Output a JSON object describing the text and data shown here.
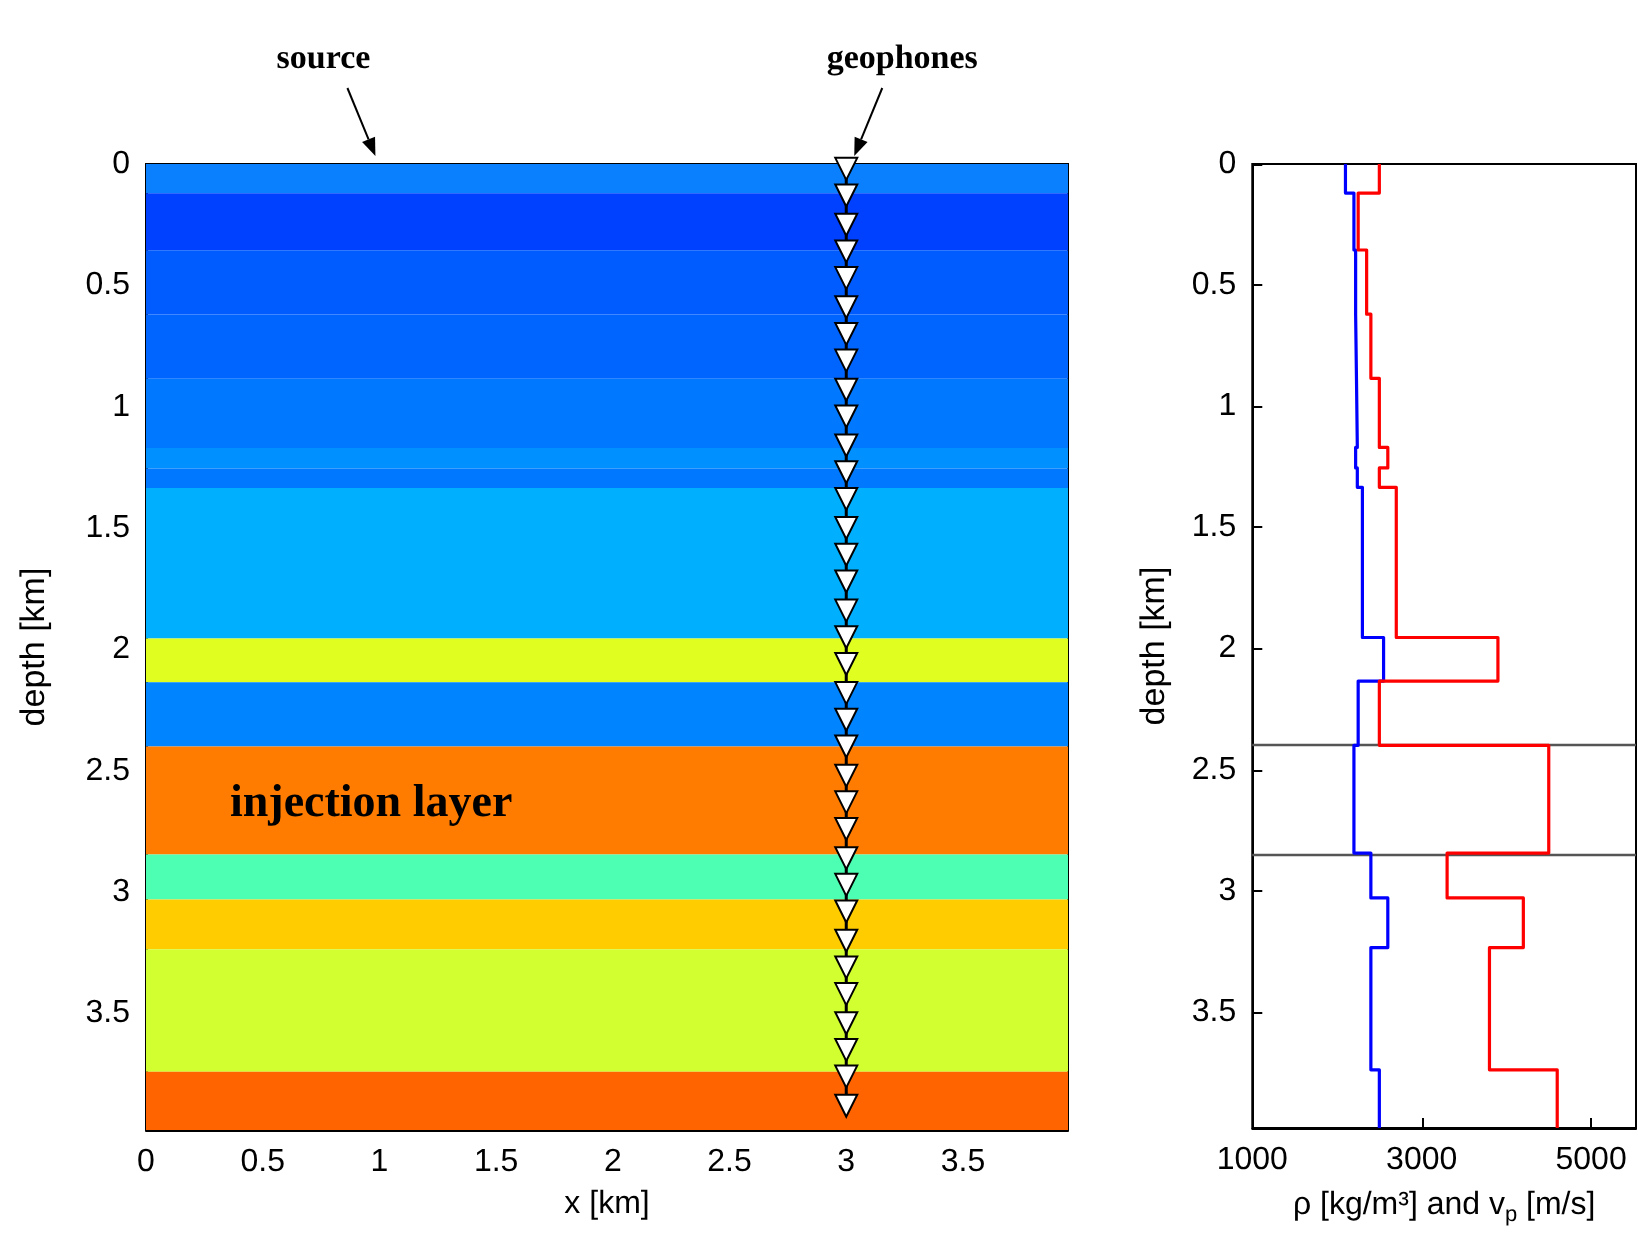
{
  "chart_data": [
    {
      "type": "line",
      "xlabel": "x [km]",
      "ylabel": "depth [km]",
      "xlim": [
        0,
        3.95
      ],
      "xticks": [
        0,
        0.5,
        1,
        1.5,
        2,
        2.5,
        3,
        3.5
      ],
      "ylim": [
        3.98,
        0
      ],
      "yticks": [
        0,
        0.5,
        1,
        1.5,
        2,
        2.5,
        3,
        3.5
      ],
      "grid": false,
      "marker": "triangle",
      "series": [
        {
          "color": "#000000",
          "x": [
            3,
            3,
            3,
            3,
            3,
            3,
            3,
            3,
            3,
            3,
            3,
            3,
            3,
            3,
            3,
            3,
            3,
            3,
            3,
            3,
            3,
            3,
            3,
            3,
            3,
            3,
            3,
            3,
            3,
            3,
            3,
            3,
            3,
            3,
            3
          ],
          "values": [
            0.02,
            0.13,
            0.25,
            0.36,
            0.47,
            0.59,
            0.7,
            0.81,
            0.93,
            1.04,
            1.16,
            1.27,
            1.38,
            1.5,
            1.61,
            1.72,
            1.84,
            1.95,
            2.06,
            2.18,
            2.29,
            2.4,
            2.52,
            2.63,
            2.74,
            2.86,
            2.97,
            3.08,
            3.2,
            3.31,
            3.42,
            3.54,
            3.65,
            3.76,
            3.88
          ]
        }
      ],
      "bands": [
        {
          "axis": "y",
          "from": 0,
          "to": 0.12,
          "color": "#0a80ff"
        },
        {
          "axis": "y",
          "from": 0.12,
          "to": 0.355,
          "color": "#0040ff"
        },
        {
          "axis": "y",
          "from": 0.355,
          "to": 0.62,
          "color": "#005cff"
        },
        {
          "axis": "y",
          "from": 0.62,
          "to": 0.885,
          "color": "#0064ff"
        },
        {
          "axis": "y",
          "from": 0.885,
          "to": 1.17,
          "color": "#0078ff"
        },
        {
          "axis": "y",
          "from": 1.17,
          "to": 1.255,
          "color": "#0090ff"
        },
        {
          "axis": "y",
          "from": 1.255,
          "to": 1.335,
          "color": "#0078ff"
        },
        {
          "axis": "y",
          "from": 1.335,
          "to": 1.955,
          "color": "#00b0ff"
        },
        {
          "axis": "y",
          "from": 1.955,
          "to": 2.135,
          "color": "#e0ff20"
        },
        {
          "axis": "y",
          "from": 2.135,
          "to": 2.4,
          "color": "#0084ff"
        },
        {
          "axis": "y",
          "from": 2.4,
          "to": 2.845,
          "color": "#ff7c00",
          "label": "injection layer"
        },
        {
          "axis": "y",
          "from": 2.845,
          "to": 3.03,
          "color": "#4cffb2"
        },
        {
          "axis": "y",
          "from": 3.03,
          "to": 3.235,
          "color": "#ffcc00"
        },
        {
          "axis": "y",
          "from": 3.235,
          "to": 3.74,
          "color": "#d2ff30"
        },
        {
          "axis": "y",
          "from": 3.74,
          "to": 3.98,
          "color": "#ff6400"
        }
      ],
      "annotations": [
        {
          "text": "source",
          "x": 1,
          "y": 0
        },
        {
          "text": "geophones",
          "x": 3,
          "y": 0
        }
      ]
    },
    {
      "type": "step",
      "orientation": "horizontal",
      "xlabel": "ρ [kg/m³] and v$_{p}$ [m/s]",
      "ylabel": "depth [km]",
      "xlim": [
        1000,
        5530
      ],
      "xticks": [
        1000,
        3000,
        5000
      ],
      "ylim": [
        3.98,
        0
      ],
      "yticks": [
        0,
        0.5,
        1,
        1.5,
        2,
        2.5,
        3,
        3.5
      ],
      "grid": false,
      "series": [
        {
          "color": "#0000ff",
          "x": [
            0,
            0.12,
            0.355,
            0.62,
            0.885,
            1.17,
            1.255,
            1.335,
            1.955,
            2.135,
            2.4,
            2.845,
            3.03,
            3.235,
            3.74,
            3.98
          ],
          "values": [
            2100,
            2200,
            2220,
            2230,
            2240,
            2220,
            2240,
            2300,
            2550,
            2250,
            2200,
            2400,
            2600,
            2400,
            2500,
            2500
          ]
        },
        {
          "color": "#ff0000",
          "x": [
            0,
            0.12,
            0.355,
            0.62,
            0.885,
            1.17,
            1.255,
            1.335,
            1.955,
            2.135,
            2.4,
            2.845,
            3.03,
            3.235,
            3.74,
            3.98
          ],
          "values": [
            2500,
            2250,
            2350,
            2400,
            2500,
            2600,
            2500,
            2700,
            3900,
            2500,
            4500,
            3300,
            4200,
            3800,
            4600,
            4600
          ]
        }
      ],
      "ref_lines": [
        {
          "axis": "y",
          "value": 2.4,
          "color": "#555555"
        },
        {
          "axis": "y",
          "value": 2.845,
          "color": "#555555"
        }
      ]
    }
  ]
}
